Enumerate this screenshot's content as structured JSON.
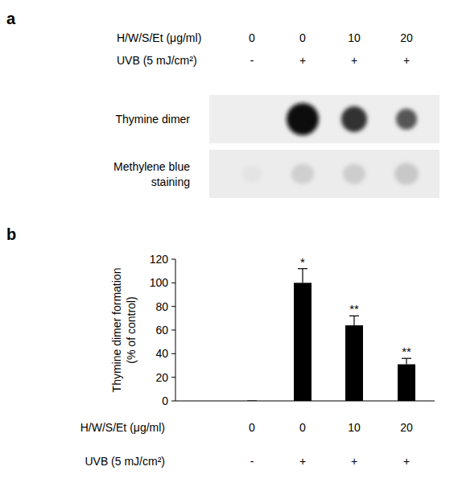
{
  "panel_a": {
    "label": "a",
    "rows": [
      {
        "title": "H/W/S/Et (μg/ml)",
        "labels": [
          "0",
          "0",
          "10",
          "20"
        ]
      },
      {
        "title": "UVB (5 mJ/cm²)",
        "labels": [
          "-",
          "+",
          "+",
          "+"
        ]
      }
    ],
    "blots": [
      {
        "title": [
          "Thymine dimer"
        ]
      },
      {
        "title": [
          "Methylene blue",
          "staining"
        ]
      }
    ]
  },
  "chart_data": {
    "type": "bar",
    "panel_label": "b",
    "y_label": [
      "Thymine dimer formation",
      "(% of control)"
    ],
    "category_title": "H/W/S/Et (μg/ml)",
    "categories": [
      "0",
      "0",
      "10",
      "20"
    ],
    "second_row": {
      "title": "UVB (5 mJ/cm²)",
      "labels": [
        "-",
        "+",
        "+",
        "+"
      ]
    },
    "values": [
      0,
      100,
      64,
      31
    ],
    "errors": [
      0,
      12,
      8,
      5
    ],
    "significance": [
      null,
      "*",
      "**",
      "**"
    ],
    "color": "#000000",
    "ylim": [
      0,
      120
    ],
    "yticks": [
      0,
      20,
      40,
      60,
      80,
      100,
      120
    ]
  }
}
